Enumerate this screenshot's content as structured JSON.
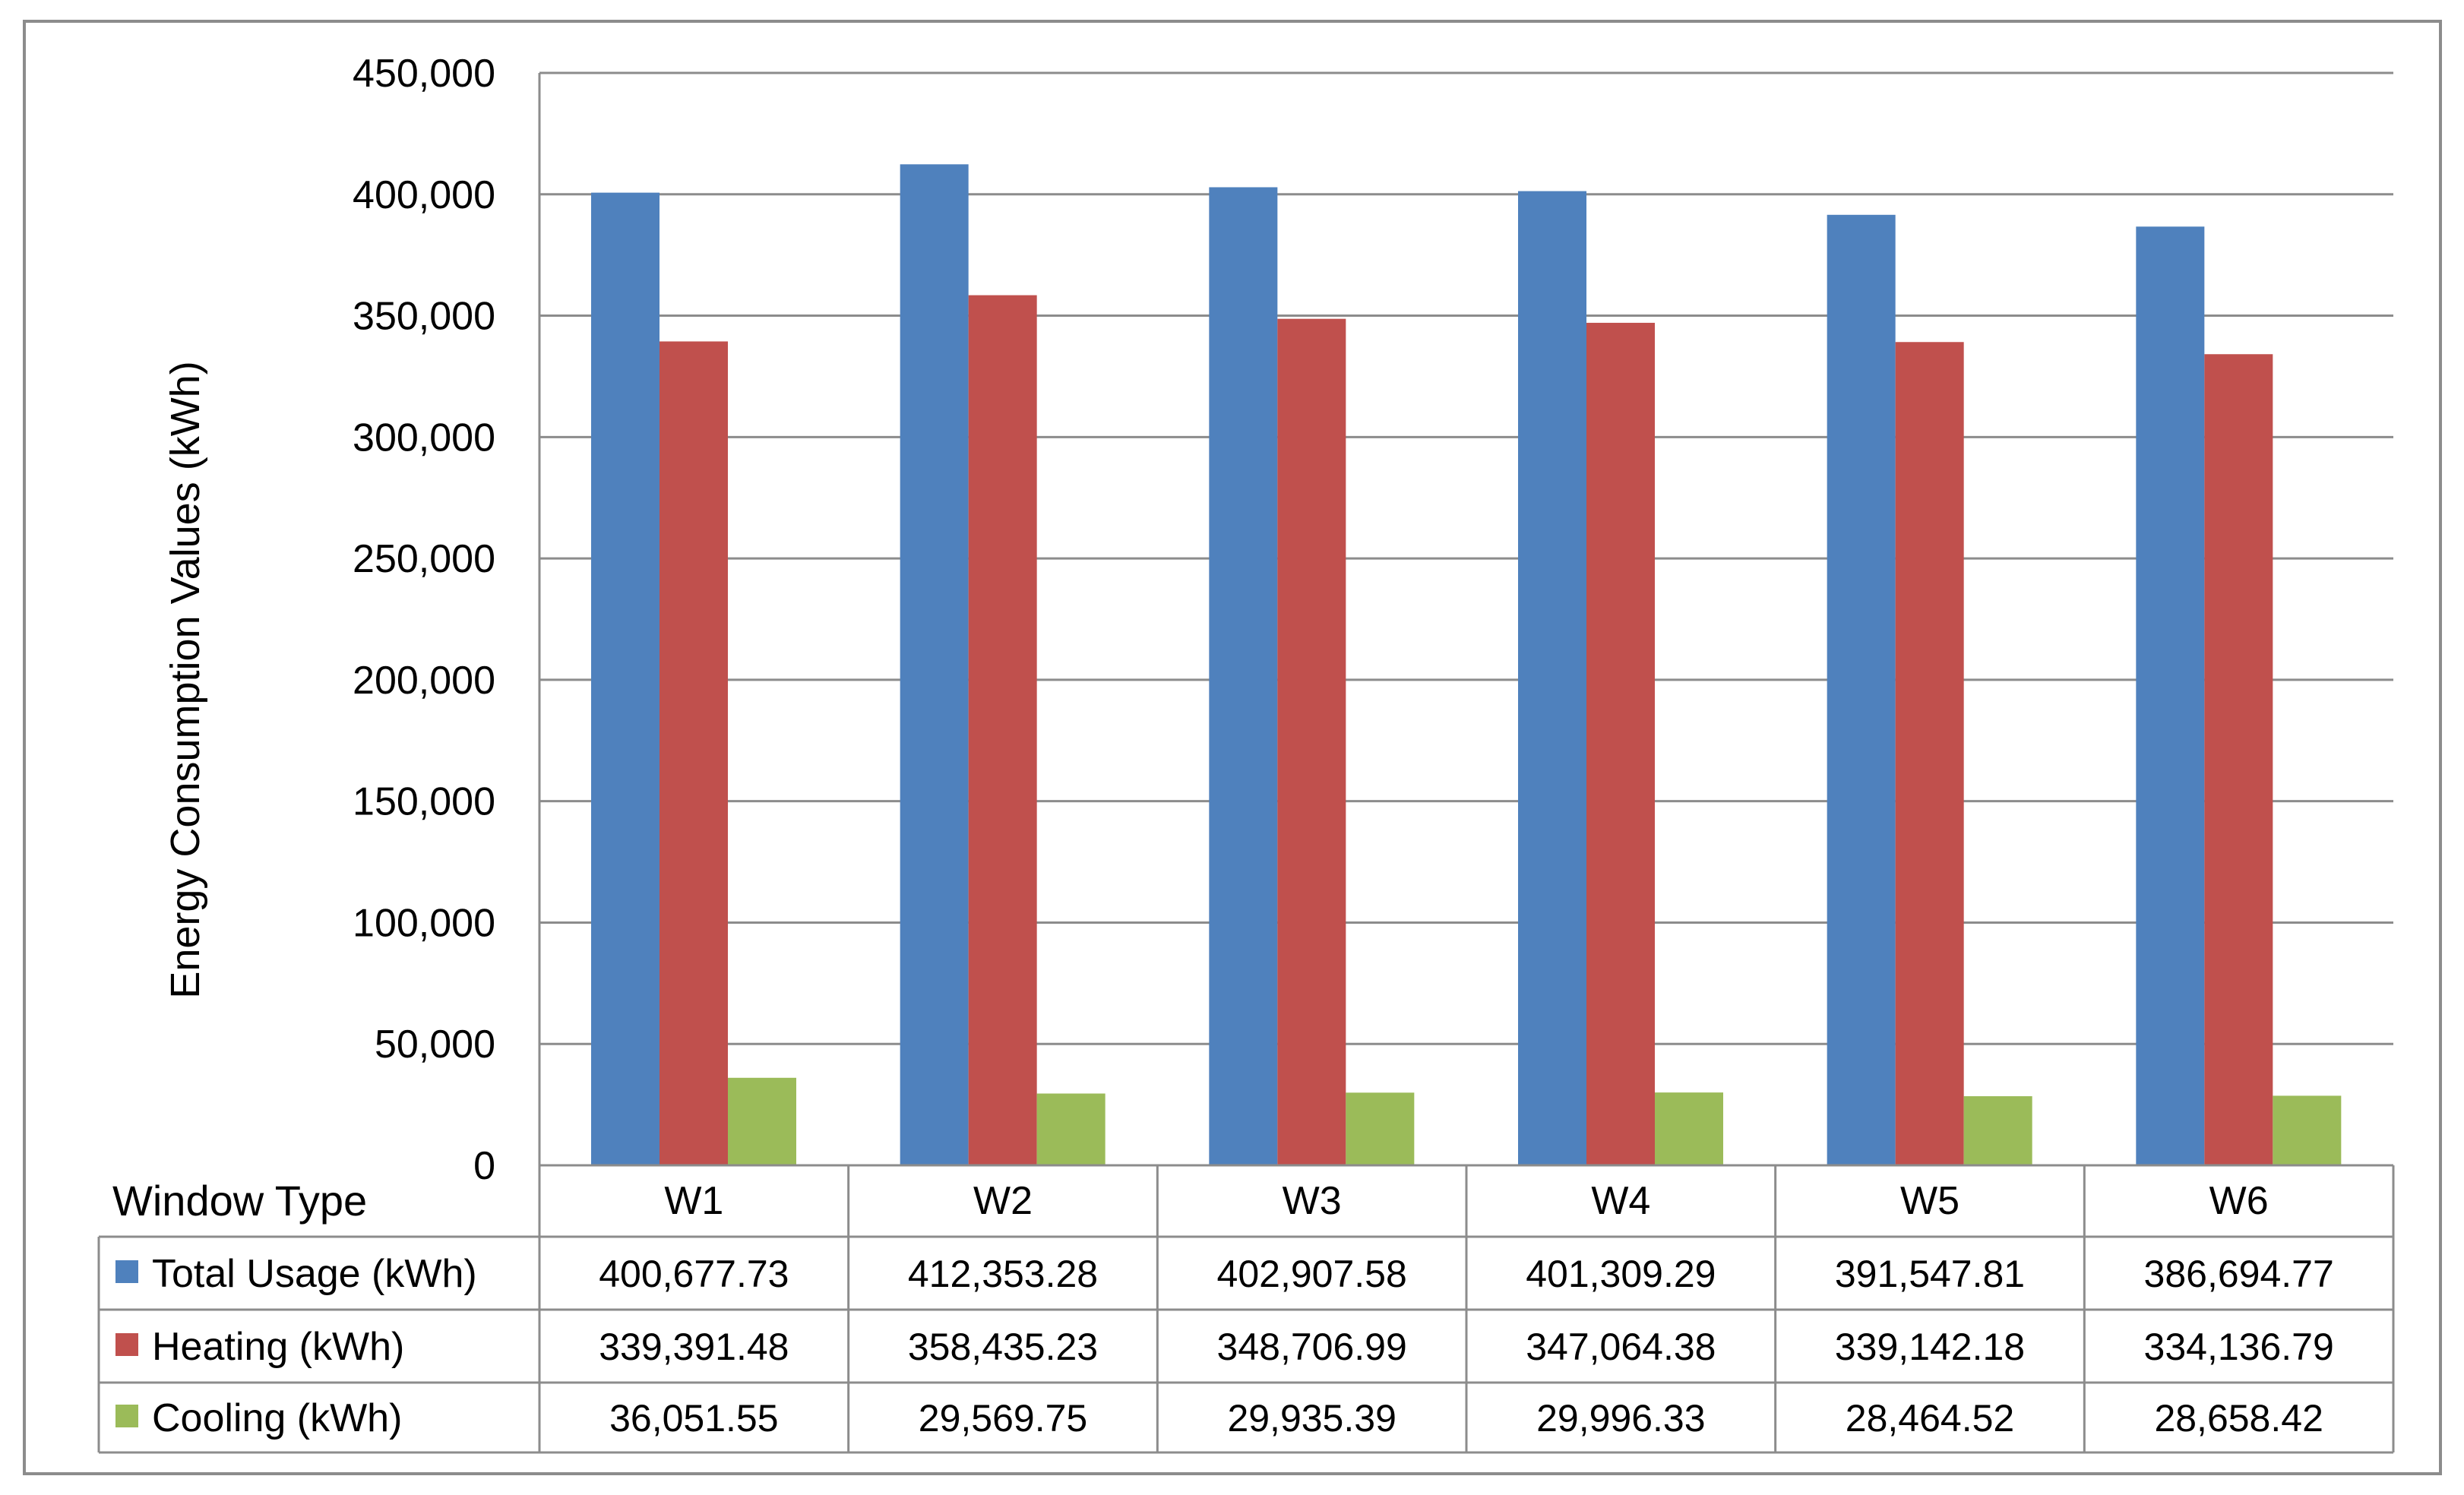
{
  "chart_data": {
    "type": "bar",
    "title": "",
    "xlabel": "",
    "ylabel": "Energy Consumption Values (kWh)",
    "ylim": [
      0,
      450000
    ],
    "yticks": [
      0,
      50000,
      100000,
      150000,
      200000,
      250000,
      300000,
      350000,
      400000,
      450000
    ],
    "ytick_labels": [
      "0",
      "50,000",
      "100,000",
      "150,000",
      "200,000",
      "250,000",
      "300,000",
      "350,000",
      "400,000",
      "450,000"
    ],
    "grid": true,
    "legend": "data-table",
    "table_header": "Window Type",
    "categories": [
      "W1",
      "W2",
      "W3",
      "W4",
      "W5",
      "W6"
    ],
    "series": [
      {
        "name": "Total Usage (kWh)",
        "color": "#4F81BD",
        "values": [
          400677.73,
          412353.28,
          402907.58,
          401309.29,
          391547.81,
          386694.77
        ],
        "labels": [
          "400,677.73",
          "412,353.28",
          "402,907.58",
          "401,309.29",
          "391,547.81",
          "386,694.77"
        ]
      },
      {
        "name": "Heating (kWh)",
        "color": "#C0504D",
        "values": [
          339391.48,
          358435.23,
          348706.99,
          347064.38,
          339142.18,
          334136.79
        ],
        "labels": [
          "339,391.48",
          "358,435.23",
          "348,706.99",
          "347,064.38",
          "339,142.18",
          "334,136.79"
        ]
      },
      {
        "name": "Cooling (kWh)",
        "color": "#9BBB59",
        "values": [
          36051.55,
          29569.75,
          29935.39,
          29996.33,
          28464.52,
          28658.42
        ],
        "labels": [
          "36,051.55",
          "29,569.75",
          "29,935.39",
          "29,996.33",
          "28,464.52",
          "28,658.42"
        ]
      }
    ]
  }
}
